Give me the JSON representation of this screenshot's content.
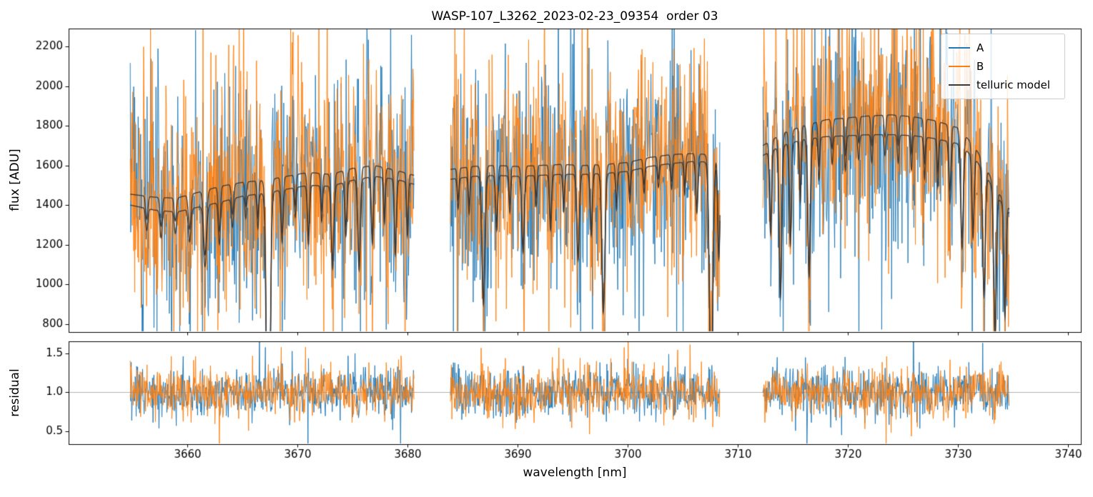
{
  "chart_data": {
    "type": "line",
    "title": "WASP-107_L3262_2023-02-23_09354  order 03",
    "xlabel": "wavelength [nm]",
    "xlim": [
      3649.2,
      3741.2
    ],
    "xticks": [
      {
        "v": 3660,
        "label": "3660"
      },
      {
        "v": 3670,
        "label": "3670"
      },
      {
        "v": 3680,
        "label": "3680"
      },
      {
        "v": 3690,
        "label": "3690"
      },
      {
        "v": 3700,
        "label": "3700"
      },
      {
        "v": 3710,
        "label": "3710"
      },
      {
        "v": 3720,
        "label": "3720"
      },
      {
        "v": 3730,
        "label": "3730"
      },
      {
        "v": 3740,
        "label": "3740"
      }
    ],
    "panels": {
      "flux": {
        "ylabel": "flux [ADU]",
        "ylim": [
          760,
          2290
        ],
        "yticks": [
          {
            "v": 800,
            "label": "800"
          },
          {
            "v": 1000,
            "label": "1000"
          },
          {
            "v": 1200,
            "label": "1200"
          },
          {
            "v": 1400,
            "label": "1400"
          },
          {
            "v": 1600,
            "label": "1600"
          },
          {
            "v": 1800,
            "label": "1800"
          },
          {
            "v": 2000,
            "label": "2000"
          },
          {
            "v": 2200,
            "label": "2200"
          }
        ]
      },
      "residual": {
        "ylabel": "residual",
        "ylim": [
          0.33,
          1.66
        ],
        "yticks": [
          {
            "v": 0.5,
            "label": "0.5"
          },
          {
            "v": 1.0,
            "label": "1.0"
          },
          {
            "v": 1.5,
            "label": "1.5"
          }
        ],
        "reference_line": 1.0,
        "reference_line_color": "#b0b0b0"
      }
    },
    "series": [
      {
        "name": "A",
        "color": "#1f77b4"
      },
      {
        "name": "B",
        "color": "#ff7f0e"
      },
      {
        "name": "telluric model",
        "color": "#3a3a3a"
      }
    ],
    "segments": [
      {
        "x_start": 3654.8,
        "x_end": 3680.6,
        "continuum_B": [
          [
            3654.8,
            1455
          ],
          [
            3657,
            1440
          ],
          [
            3659,
            1435
          ],
          [
            3661,
            1465
          ],
          [
            3663,
            1495
          ],
          [
            3665,
            1515
          ],
          [
            3667,
            1525
          ],
          [
            3669,
            1545
          ],
          [
            3671,
            1565
          ],
          [
            3673,
            1555
          ],
          [
            3675,
            1585
          ],
          [
            3677,
            1600
          ],
          [
            3679,
            1575
          ],
          [
            3680.6,
            1550
          ]
        ],
        "continuum_A": [
          [
            3654.8,
            1400
          ],
          [
            3657,
            1375
          ],
          [
            3659,
            1365
          ],
          [
            3661,
            1390
          ],
          [
            3663,
            1415
          ],
          [
            3665,
            1445
          ],
          [
            3667,
            1460
          ],
          [
            3669,
            1480
          ],
          [
            3671,
            1500
          ],
          [
            3673,
            1495
          ],
          [
            3675,
            1525
          ],
          [
            3677,
            1545
          ],
          [
            3679,
            1530
          ],
          [
            3680.6,
            1505
          ]
        ],
        "telluric_lines": [
          [
            3656.3,
            0.08,
            0.1
          ],
          [
            3657.6,
            0.1,
            0.1
          ],
          [
            3658.9,
            0.08,
            0.1
          ],
          [
            3660.2,
            0.12,
            0.12
          ],
          [
            3661.6,
            0.22,
            0.14
          ],
          [
            3662.9,
            0.15,
            0.1
          ],
          [
            3664.1,
            0.1,
            0.1
          ],
          [
            3665.3,
            0.08,
            0.08
          ],
          [
            3666.4,
            0.12,
            0.08
          ],
          [
            3667.35,
            1.05,
            0.16
          ],
          [
            3668.6,
            0.18,
            0.1
          ],
          [
            3669.8,
            0.1,
            0.08
          ],
          [
            3671.0,
            0.2,
            0.1
          ],
          [
            3672.2,
            0.12,
            0.08
          ],
          [
            3673.2,
            0.28,
            0.12
          ],
          [
            3674.4,
            0.18,
            0.1
          ],
          [
            3675.6,
            0.3,
            0.12
          ],
          [
            3676.8,
            0.22,
            0.1
          ],
          [
            3677.9,
            0.15,
            0.08
          ],
          [
            3678.9,
            0.25,
            0.1
          ],
          [
            3680.0,
            0.18,
            0.08
          ]
        ]
      },
      {
        "x_start": 3683.9,
        "x_end": 3708.4,
        "continuum_B": [
          [
            3683.9,
            1580
          ],
          [
            3686,
            1595
          ],
          [
            3688,
            1600
          ],
          [
            3690,
            1595
          ],
          [
            3692,
            1600
          ],
          [
            3694,
            1605
          ],
          [
            3696,
            1600
          ],
          [
            3698,
            1605
          ],
          [
            3700,
            1615
          ],
          [
            3702,
            1640
          ],
          [
            3704,
            1655
          ],
          [
            3706,
            1660
          ],
          [
            3708.4,
            1650
          ]
        ],
        "continuum_A": [
          [
            3683.9,
            1530
          ],
          [
            3686,
            1545
          ],
          [
            3688,
            1550
          ],
          [
            3690,
            1545
          ],
          [
            3692,
            1550
          ],
          [
            3694,
            1555
          ],
          [
            3696,
            1555
          ],
          [
            3698,
            1560
          ],
          [
            3700,
            1570
          ],
          [
            3702,
            1595
          ],
          [
            3704,
            1610
          ],
          [
            3706,
            1620
          ],
          [
            3708.4,
            1615
          ]
        ],
        "telluric_lines": [
          [
            3684.6,
            0.1,
            0.08
          ],
          [
            3685.6,
            0.12,
            0.08
          ],
          [
            3686.9,
            0.42,
            0.14
          ],
          [
            3688.1,
            0.18,
            0.1
          ],
          [
            3689.3,
            0.12,
            0.08
          ],
          [
            3690.5,
            0.25,
            0.12
          ],
          [
            3691.7,
            0.1,
            0.08
          ],
          [
            3693.0,
            0.18,
            0.1
          ],
          [
            3694.2,
            0.12,
            0.08
          ],
          [
            3695.5,
            0.28,
            0.12
          ],
          [
            3696.7,
            0.2,
            0.1
          ],
          [
            3697.8,
            0.45,
            0.14
          ],
          [
            3699.0,
            0.12,
            0.08
          ],
          [
            3700.2,
            0.1,
            0.08
          ],
          [
            3701.5,
            0.08,
            0.08
          ],
          [
            3702.8,
            0.07,
            0.08
          ],
          [
            3704.0,
            0.08,
            0.08
          ],
          [
            3705.2,
            0.1,
            0.08
          ],
          [
            3706.3,
            0.16,
            0.1
          ],
          [
            3707.6,
            0.7,
            0.16
          ],
          [
            3708.3,
            0.3,
            0.1
          ]
        ]
      },
      {
        "x_start": 3712.3,
        "x_end": 3734.7,
        "continuum_B": [
          [
            3712.3,
            1700
          ],
          [
            3714,
            1760
          ],
          [
            3716,
            1800
          ],
          [
            3718,
            1830
          ],
          [
            3720,
            1840
          ],
          [
            3722,
            1850
          ],
          [
            3724,
            1855
          ],
          [
            3726,
            1845
          ],
          [
            3728,
            1825
          ],
          [
            3730,
            1790
          ],
          [
            3731.5,
            1700
          ],
          [
            3732.5,
            1600
          ],
          [
            3733.5,
            1480
          ],
          [
            3734.7,
            1380
          ]
        ],
        "continuum_A": [
          [
            3712.3,
            1650
          ],
          [
            3714,
            1700
          ],
          [
            3716,
            1730
          ],
          [
            3718,
            1745
          ],
          [
            3720,
            1750
          ],
          [
            3722,
            1755
          ],
          [
            3724,
            1755
          ],
          [
            3726,
            1750
          ],
          [
            3728,
            1735
          ],
          [
            3730,
            1710
          ],
          [
            3731.5,
            1640
          ],
          [
            3732.5,
            1560
          ],
          [
            3733.5,
            1450
          ],
          [
            3734.7,
            1360
          ]
        ],
        "telluric_lines": [
          [
            3713.0,
            0.25,
            0.1
          ],
          [
            3713.9,
            0.45,
            0.12
          ],
          [
            3714.8,
            0.3,
            0.1
          ],
          [
            3715.7,
            0.18,
            0.08
          ],
          [
            3716.5,
            0.4,
            0.12
          ],
          [
            3717.4,
            0.12,
            0.08
          ],
          [
            3718.6,
            0.08,
            0.08
          ],
          [
            3719.8,
            0.1,
            0.08
          ],
          [
            3721.0,
            0.07,
            0.08
          ],
          [
            3722.2,
            0.08,
            0.08
          ],
          [
            3723.4,
            0.06,
            0.08
          ],
          [
            3724.6,
            0.08,
            0.08
          ],
          [
            3725.8,
            0.1,
            0.08
          ],
          [
            3727.0,
            0.12,
            0.08
          ],
          [
            3728.2,
            0.14,
            0.08
          ],
          [
            3729.3,
            0.18,
            0.1
          ],
          [
            3730.4,
            0.3,
            0.12
          ],
          [
            3731.4,
            0.25,
            0.1
          ],
          [
            3732.4,
            0.4,
            0.12
          ],
          [
            3733.4,
            0.5,
            0.12
          ],
          [
            3734.3,
            0.4,
            0.1
          ]
        ]
      }
    ],
    "noise": {
      "seed": 20230223,
      "step_nm": 0.045,
      "flux_sigma": 285,
      "flux_spike_sigma": 640,
      "residual_sigma": 0.155,
      "residual_spike_sigma": 0.33,
      "spike_prob": 0.07
    }
  }
}
